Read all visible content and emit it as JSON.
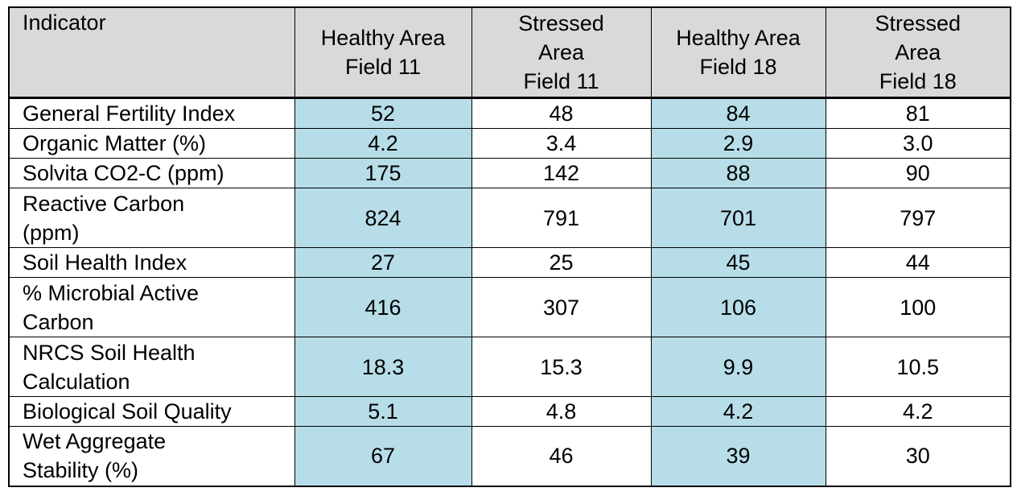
{
  "table": {
    "header": [
      "Indicator",
      "Healthy Area\nField 11",
      "Stressed\nArea\nField 11",
      "Healthy Area\nField 18",
      "Stressed\nArea\nField 18"
    ],
    "rows": [
      [
        "General Fertility Index",
        "52",
        "48",
        "84",
        "81"
      ],
      [
        "Organic Matter (%)",
        "4.2",
        "3.4",
        "2.9",
        "3.0"
      ],
      [
        "Solvita CO2-C (ppm)",
        "175",
        "142",
        "88",
        "90"
      ],
      [
        "Reactive Carbon\n(ppm)",
        "824",
        "791",
        "701",
        "797"
      ],
      [
        "Soil Health Index",
        "27",
        "25",
        "45",
        "44"
      ],
      [
        "% Microbial Active\nCarbon",
        "416",
        "307",
        "106",
        "100"
      ],
      [
        "NRCS Soil Health\nCalculation",
        "18.3",
        "15.3",
        "9.9",
        "10.5"
      ],
      [
        "Biological Soil Quality",
        "5.1",
        "4.8",
        "4.2",
        "4.2"
      ],
      [
        "Wet Aggregate\nStability (%)",
        "67",
        "46",
        "39",
        "30"
      ]
    ]
  }
}
